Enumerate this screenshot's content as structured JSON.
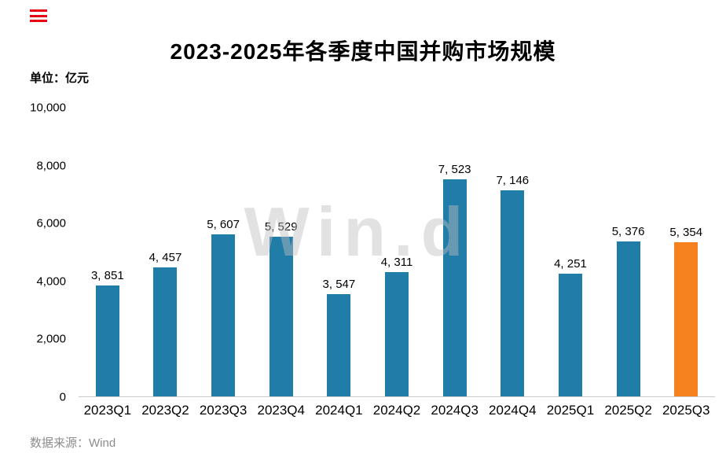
{
  "header": {
    "title": "2023-2025年各季度中国并购市场规模",
    "unit_label": "单位：亿元"
  },
  "watermark": "Win.d",
  "footer": {
    "source": "数据来源：Wind"
  },
  "colors": {
    "bar": "#1f7da8",
    "highlight": "#f5821f",
    "menu_red": "#e60012",
    "source_gray": "#8c8c8c"
  },
  "chart_data": {
    "type": "bar",
    "title": "2023-2025年各季度中国并购市场规模",
    "unit": "亿元",
    "categories": [
      "2023Q1",
      "2023Q2",
      "2023Q3",
      "2023Q4",
      "2024Q1",
      "2024Q2",
      "2024Q3",
      "2024Q4",
      "2025Q1",
      "2025Q2",
      "2025Q3"
    ],
    "values": [
      3851,
      4457,
      5607,
      5529,
      3547,
      4311,
      7523,
      7146,
      4251,
      5376,
      5354
    ],
    "labels": [
      "3, 851",
      "4, 457",
      "5, 607",
      "5, 529",
      "3, 547",
      "4, 311",
      "7, 523",
      "7, 146",
      "4, 251",
      "5, 376",
      "5, 354"
    ],
    "ylim": [
      0,
      10000
    ],
    "yticks": [
      0,
      2000,
      4000,
      6000,
      8000,
      10000
    ],
    "ytick_labels": [
      "0",
      "2,000",
      "4,000",
      "6,000",
      "8,000",
      "10,000"
    ],
    "highlight_index": 10,
    "grid": false,
    "legend": false,
    "source": "Wind"
  }
}
